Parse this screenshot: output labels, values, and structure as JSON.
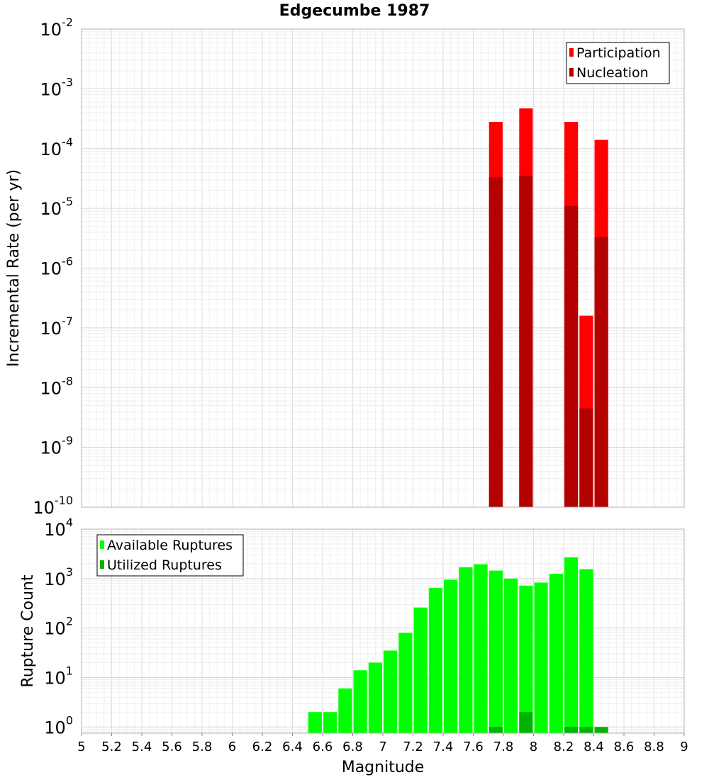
{
  "title": "Edgecumbe 1987",
  "x_axis": {
    "label": "Magnitude",
    "range": [
      5,
      9
    ],
    "ticks": [
      "5",
      "5.2",
      "5.4",
      "5.6",
      "5.8",
      "6",
      "6.2",
      "6.4",
      "6.6",
      "6.8",
      "7",
      "7.2",
      "7.4",
      "7.6",
      "7.8",
      "8",
      "8.2",
      "8.4",
      "8.6",
      "8.8",
      "9"
    ]
  },
  "chart_data": [
    {
      "type": "bar",
      "name": "rate-panel",
      "ylabel": "Incremental Rate (per yr)",
      "yscale": "log",
      "ylim": [
        1e-10,
        0.01
      ],
      "y_tick_exponents": [
        "-10",
        "-9",
        "-8",
        "-7",
        "-6",
        "-5",
        "-4",
        "-3",
        "-2"
      ],
      "legend": {
        "placement": "top-right",
        "entries": [
          "Participation",
          "Nucleation"
        ]
      },
      "grid": true,
      "bar_width": 0.09,
      "series": [
        {
          "name": "Participation",
          "color": "#ff0000",
          "points": [
            {
              "x": 7.75,
              "y": 0.00028
            },
            {
              "x": 7.95,
              "y": 0.00047
            },
            {
              "x": 8.25,
              "y": 0.00028
            },
            {
              "x": 8.35,
              "y": 1.6e-07
            },
            {
              "x": 8.45,
              "y": 0.00014
            }
          ]
        },
        {
          "name": "Nucleation",
          "color": "#b30000",
          "points": [
            {
              "x": 7.75,
              "y": 3.3e-05
            },
            {
              "x": 7.95,
              "y": 3.5e-05
            },
            {
              "x": 8.25,
              "y": 1.1e-05
            },
            {
              "x": 8.35,
              "y": 4.5e-09
            },
            {
              "x": 8.45,
              "y": 3.3e-06
            }
          ]
        }
      ]
    },
    {
      "type": "bar",
      "name": "count-panel",
      "ylabel": "Rupture Count",
      "yscale": "log",
      "ylim": [
        0.75,
        10000
      ],
      "y_tick_exponents": [
        "0",
        "1",
        "2",
        "3",
        "4"
      ],
      "legend": {
        "placement": "top-left",
        "entries": [
          "Available Ruptures",
          "Utilized Ruptures"
        ]
      },
      "grid": true,
      "bar_width": 0.09,
      "series": [
        {
          "name": "Available Ruptures",
          "color": "#00ff00",
          "points": [
            {
              "x": 6.55,
              "y": 2
            },
            {
              "x": 6.65,
              "y": 2
            },
            {
              "x": 6.75,
              "y": 6
            },
            {
              "x": 6.85,
              "y": 14
            },
            {
              "x": 6.95,
              "y": 20
            },
            {
              "x": 7.05,
              "y": 35
            },
            {
              "x": 7.15,
              "y": 80
            },
            {
              "x": 7.25,
              "y": 260
            },
            {
              "x": 7.35,
              "y": 650
            },
            {
              "x": 7.45,
              "y": 950
            },
            {
              "x": 7.55,
              "y": 1700
            },
            {
              "x": 7.65,
              "y": 1950
            },
            {
              "x": 7.75,
              "y": 1450
            },
            {
              "x": 7.85,
              "y": 1000
            },
            {
              "x": 7.95,
              "y": 720
            },
            {
              "x": 8.05,
              "y": 830
            },
            {
              "x": 8.15,
              "y": 1250
            },
            {
              "x": 8.25,
              "y": 2700
            },
            {
              "x": 8.35,
              "y": 1550
            }
          ]
        },
        {
          "name": "Utilized Ruptures",
          "color": "#00b300",
          "points": [
            {
              "x": 7.75,
              "y": 1
            },
            {
              "x": 7.95,
              "y": 2
            },
            {
              "x": 8.25,
              "y": 1
            },
            {
              "x": 8.35,
              "y": 1
            },
            {
              "x": 8.45,
              "y": 1
            }
          ]
        }
      ]
    }
  ]
}
